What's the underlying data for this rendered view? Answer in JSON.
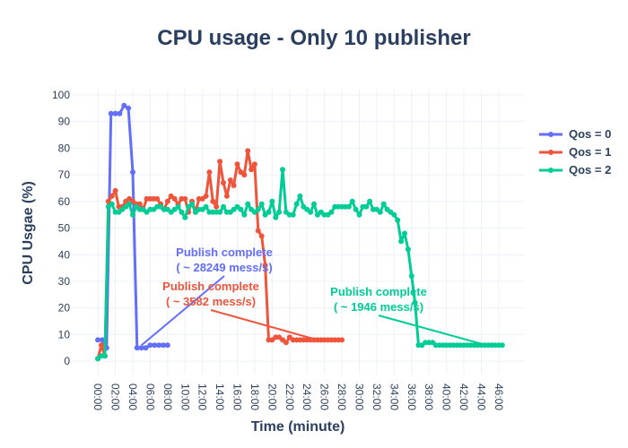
{
  "chart_data": {
    "type": "line",
    "title": "CPU usage - Only 10 publisher",
    "xlabel": "Time (minute)",
    "ylabel": "CPU Usgae (%)",
    "xlim_minutes": [
      -3,
      49
    ],
    "ylim": [
      -5,
      102
    ],
    "yticks": [
      0,
      10,
      20,
      30,
      40,
      50,
      60,
      70,
      80,
      90,
      100
    ],
    "xticks": [
      {
        "v": 0,
        "label": "00:00"
      },
      {
        "v": 2,
        "label": "02:00"
      },
      {
        "v": 4,
        "label": "04:00"
      },
      {
        "v": 6,
        "label": "06:00"
      },
      {
        "v": 8,
        "label": "08:00"
      },
      {
        "v": 10,
        "label": "10:00"
      },
      {
        "v": 12,
        "label": "12:00"
      },
      {
        "v": 14,
        "label": "14:00"
      },
      {
        "v": 16,
        "label": "16:00"
      },
      {
        "v": 18,
        "label": "18:00"
      },
      {
        "v": 20,
        "label": "20:00"
      },
      {
        "v": 22,
        "label": "22:00"
      },
      {
        "v": 24,
        "label": "24:00"
      },
      {
        "v": 26,
        "label": "26:00"
      },
      {
        "v": 28,
        "label": "28:00"
      },
      {
        "v": 30,
        "label": "30:00"
      },
      {
        "v": 32,
        "label": "32:00"
      },
      {
        "v": 34,
        "label": "34:00"
      },
      {
        "v": 36,
        "label": "36:00"
      },
      {
        "v": 38,
        "label": "38:00"
      },
      {
        "v": 40,
        "label": "40:00"
      },
      {
        "v": 42,
        "label": "42:00"
      },
      {
        "v": 44,
        "label": "44:00"
      },
      {
        "v": 46,
        "label": "46:00"
      }
    ],
    "grid": true,
    "legend_position": "right",
    "series": [
      {
        "name": "Qos = 0",
        "color": "#636efa",
        "x": [
          0,
          0.5,
          1,
          1.5,
          2,
          2.5,
          3,
          3.5,
          4,
          4.5,
          5,
          5.5,
          6,
          6.5,
          7,
          7.5,
          8
        ],
        "y": [
          8,
          8,
          5,
          93,
          93,
          93,
          96,
          95,
          71,
          5,
          5,
          5,
          6,
          6,
          6,
          6,
          6
        ]
      },
      {
        "name": "Qos = 1",
        "color": "#ef553b",
        "x": [
          0,
          0.4,
          0.8,
          1.2,
          1.6,
          2.0,
          2.4,
          2.8,
          3.2,
          3.6,
          4.0,
          4.4,
          4.8,
          5.2,
          5.6,
          6.0,
          6.4,
          6.8,
          7.2,
          7.6,
          8.0,
          8.4,
          8.8,
          9.2,
          9.6,
          10.0,
          10.4,
          10.8,
          11.2,
          11.6,
          12.0,
          12.4,
          12.8,
          13.2,
          13.6,
          14.0,
          14.4,
          14.8,
          15.2,
          15.6,
          16.0,
          16.4,
          16.8,
          17.2,
          17.6,
          18.0,
          18.4,
          18.8,
          19.2,
          19.6,
          20.0,
          20.4,
          20.8,
          21.2,
          21.6,
          22.0,
          22.4,
          22.8,
          23.2,
          23.6,
          24.0,
          24.4,
          24.8,
          25.2,
          25.6,
          26.0,
          26.4,
          26.8,
          27.2,
          27.6,
          28.0
        ],
        "y": [
          1,
          6,
          2,
          60,
          62,
          64,
          58,
          58,
          60,
          61,
          60,
          59,
          59,
          57,
          61,
          61,
          61,
          61,
          59,
          57,
          60,
          62,
          61,
          59,
          61,
          61,
          56,
          60,
          56,
          61,
          61,
          62,
          71,
          60,
          58,
          75,
          67,
          62,
          68,
          66,
          74,
          71,
          70,
          79,
          72,
          74,
          49,
          47,
          36,
          8,
          8,
          9,
          9,
          8,
          7,
          9,
          8,
          8,
          8,
          8,
          8,
          8,
          8,
          8,
          8,
          8,
          8,
          8,
          8,
          8,
          8
        ]
      },
      {
        "name": "Qos = 2",
        "color": "#00cc96",
        "x": [
          0,
          0.4,
          0.8,
          1.2,
          1.6,
          2.0,
          2.4,
          2.8,
          3.2,
          3.6,
          4.0,
          4.4,
          4.8,
          5.2,
          5.6,
          6.0,
          6.4,
          6.8,
          7.2,
          7.6,
          8.0,
          8.4,
          8.8,
          9.2,
          9.6,
          10.0,
          10.4,
          10.8,
          11.2,
          11.6,
          12.0,
          12.4,
          12.8,
          13.2,
          13.6,
          14.0,
          14.4,
          14.8,
          15.2,
          15.6,
          16.0,
          16.4,
          16.8,
          17.2,
          17.6,
          18.0,
          18.4,
          18.8,
          19.2,
          19.6,
          20.0,
          20.4,
          20.8,
          21.2,
          21.6,
          22.0,
          22.4,
          22.8,
          23.2,
          23.6,
          24.0,
          24.4,
          24.8,
          25.2,
          25.6,
          26.0,
          26.4,
          26.8,
          27.2,
          27.6,
          28.0,
          28.4,
          28.8,
          29.2,
          29.6,
          30.0,
          30.4,
          30.8,
          31.2,
          31.6,
          32.0,
          32.4,
          32.8,
          33.2,
          33.6,
          34.0,
          34.4,
          34.8,
          35.2,
          35.6,
          36.0,
          36.4,
          36.8,
          37.2,
          37.6,
          38.0,
          38.4,
          38.8,
          39.2,
          39.6,
          40.0,
          40.4,
          40.8,
          41.2,
          41.6,
          42.0,
          42.4,
          42.8,
          43.2,
          43.6,
          44.0,
          44.4,
          44.8,
          45.2,
          45.6,
          46.0,
          46.4
        ],
        "y": [
          1,
          2,
          2,
          58,
          59,
          56,
          56,
          57,
          58,
          59,
          55,
          58,
          57,
          57,
          56,
          57,
          57,
          58,
          58,
          57,
          57,
          56,
          57,
          58,
          56,
          54,
          58,
          59,
          56,
          57,
          57,
          58,
          56,
          56,
          56,
          56,
          58,
          56,
          56,
          57,
          58,
          57,
          55,
          59,
          57,
          56,
          57,
          59,
          55,
          56,
          60,
          54,
          56,
          72,
          56,
          55,
          55,
          59,
          62,
          58,
          57,
          56,
          59,
          55,
          56,
          55,
          55,
          56,
          58,
          58,
          58,
          58,
          58,
          60,
          57,
          55,
          58,
          58,
          60,
          57,
          57,
          56,
          59,
          57,
          56,
          55,
          53,
          45,
          48,
          42,
          32,
          22,
          6,
          6,
          7,
          7,
          7,
          6,
          6,
          6,
          6,
          6,
          6,
          6,
          6,
          6,
          6,
          6,
          6,
          6,
          6,
          6,
          6,
          6,
          6,
          6,
          6
        ]
      }
    ],
    "annotations": [
      {
        "lines": [
          "Publish complete",
          "( ~ 28249 mess/s)"
        ],
        "color": "#636efa",
        "target": [
          5,
          6
        ]
      },
      {
        "lines": [
          "Publish complete",
          "( ~ 3582 mess/s)"
        ],
        "color": "#ef553b",
        "target": [
          25.2,
          8
        ]
      },
      {
        "lines": [
          "Publish complete",
          "( ~ 1946 mess/s)"
        ],
        "color": "#00cc96",
        "target": [
          44.6,
          6
        ]
      }
    ]
  }
}
